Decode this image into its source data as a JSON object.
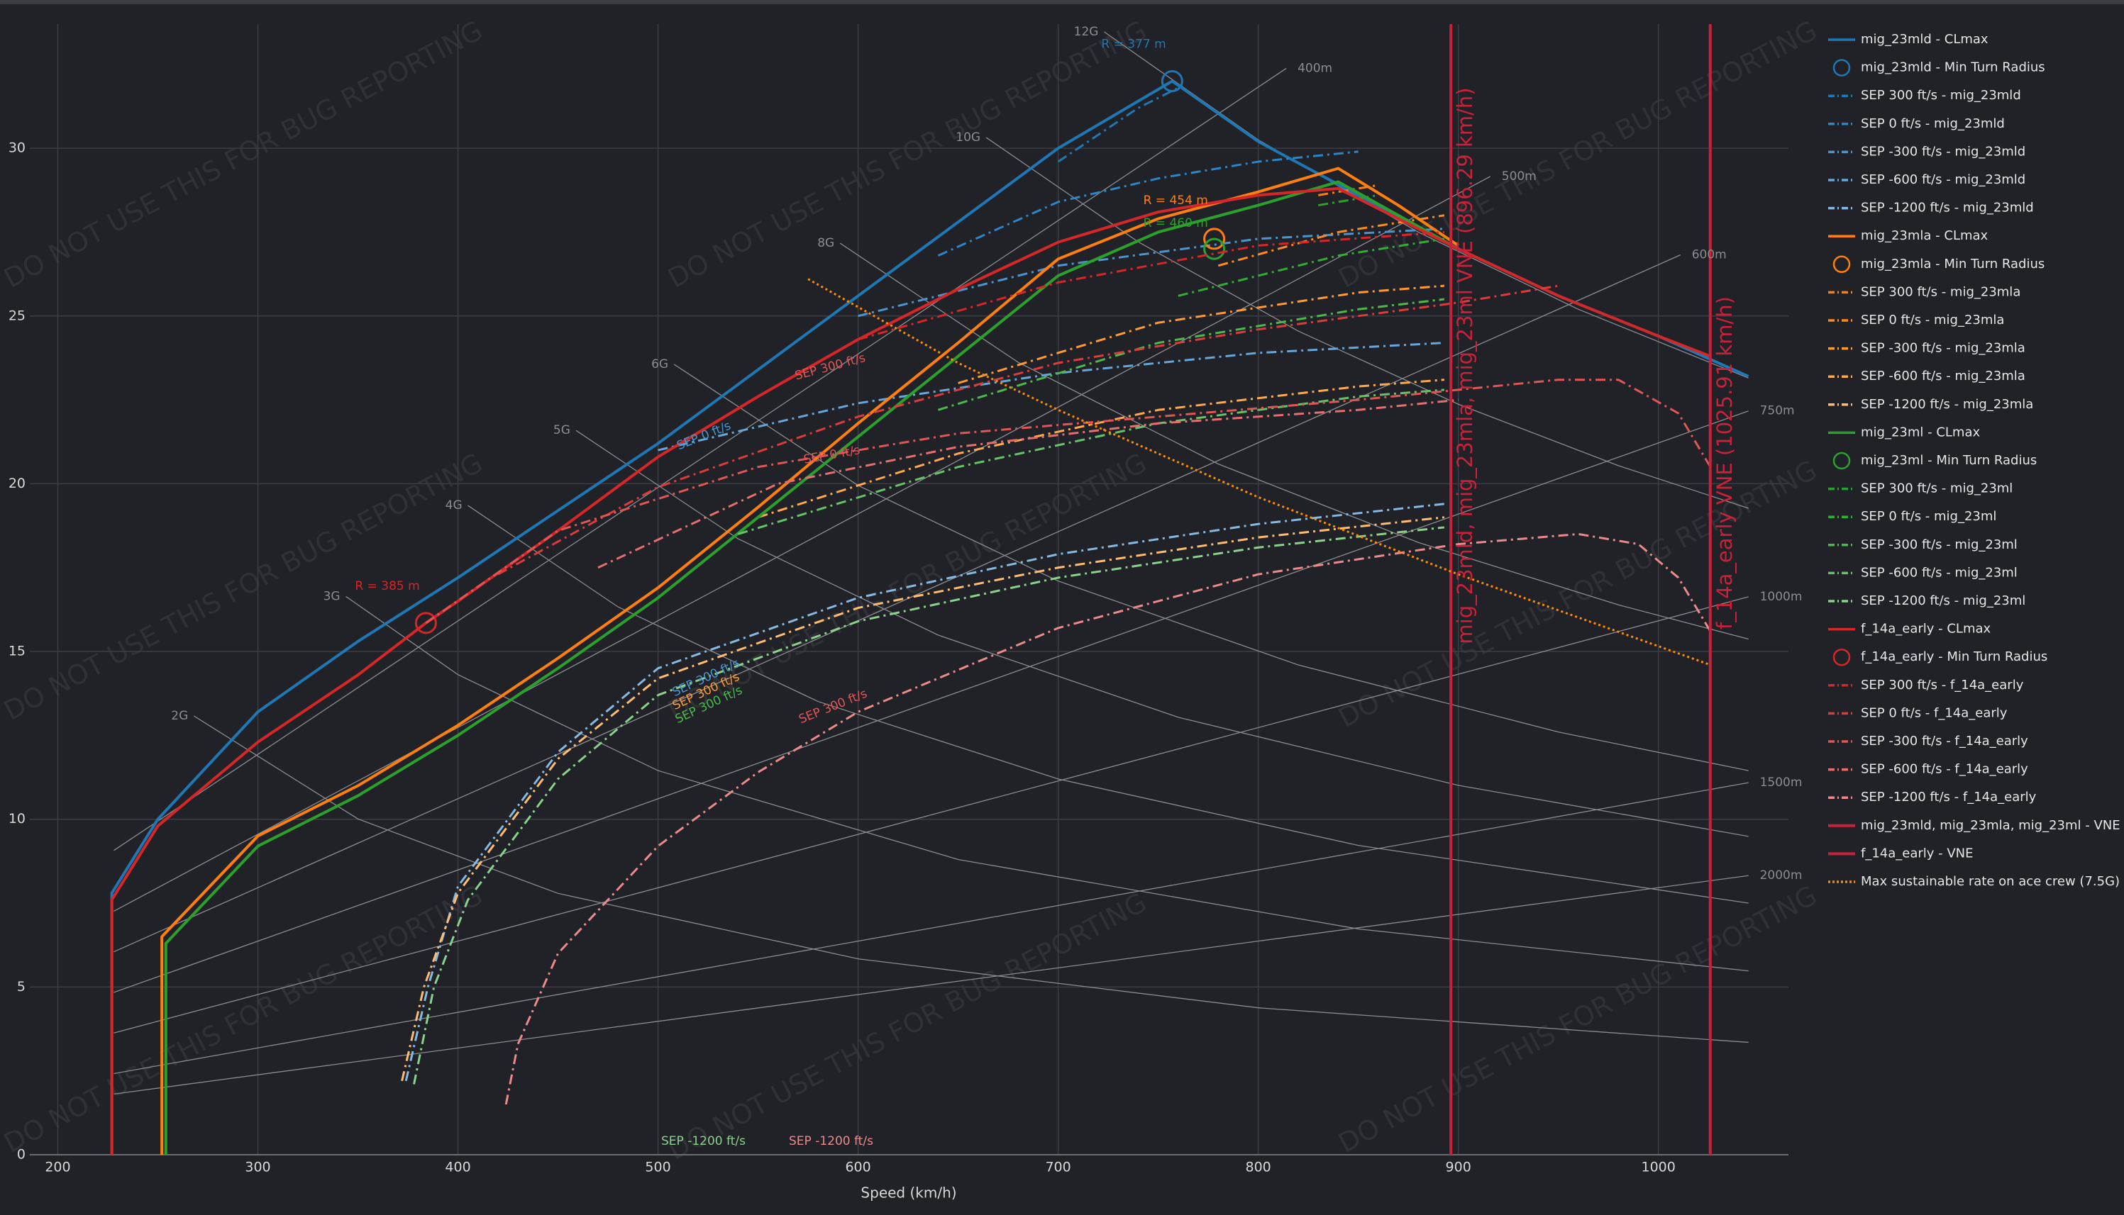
{
  "chart_data": {
    "type": "line",
    "xlabel": "Speed (km/h)",
    "watermark": "DO NOT USE THIS FOR BUG REPORTING",
    "xlim": [
      186,
      1065
    ],
    "ylim": [
      0,
      33.7
    ],
    "xticks": [
      200,
      300,
      400,
      500,
      600,
      700,
      800,
      900,
      1000
    ],
    "yticks": [
      0,
      5,
      10,
      15,
      20,
      25,
      30
    ],
    "grid": true,
    "series": [
      {
        "name": "mig_23mld - CLmax",
        "color": "#1f77b4",
        "style": "solid",
        "x": [
          227,
          227,
          250,
          300,
          350,
          400,
          450,
          500,
          550,
          600,
          650,
          700,
          757,
          800,
          850,
          900,
          950,
          1000,
          1045
        ],
        "values": [
          0,
          7.8,
          10,
          13.2,
          15.3,
          17.2,
          19.2,
          21.2,
          23.4,
          25.6,
          27.8,
          30,
          32,
          30.2,
          28.6,
          27,
          25.6,
          24.4,
          23.2
        ]
      },
      {
        "name": "mig_23mld - Min Turn Radius",
        "color": "#1f77b4",
        "style": "marker",
        "annotation": "R = 377 m",
        "x": [
          757
        ],
        "values": [
          32
        ]
      },
      {
        "name": "SEP 300 ft/s - mig_23mld",
        "color": "#1f77b4",
        "style": "dashdot",
        "x": [
          700,
          740,
          760
        ],
        "values": [
          29.6,
          31.2,
          31.8
        ]
      },
      {
        "name": "SEP 0 ft/s - mig_23mld",
        "color": "#2a86c8",
        "style": "dashdot",
        "x": [
          640,
          700,
          750,
          800,
          850
        ],
        "values": [
          26.8,
          28.4,
          29.1,
          29.6,
          29.9
        ]
      },
      {
        "name": "SEP -300 ft/s - mig_23mld",
        "color": "#4a94cf",
        "style": "dashdot",
        "x": [
          600,
          700,
          800,
          893
        ],
        "values": [
          25,
          26.5,
          27.3,
          27.6
        ]
      },
      {
        "name": "SEP -600 ft/s - mig_23mld",
        "color": "#66a6d8",
        "style": "dashdot",
        "x": [
          500,
          600,
          700,
          800,
          893
        ],
        "values": [
          21,
          22.4,
          23.3,
          23.9,
          24.2
        ]
      },
      {
        "name": "SEP -1200 ft/s - mig_23mld",
        "color": "#85b9e2",
        "style": "dashdot",
        "x": [
          374,
          385,
          400,
          450,
          500,
          600,
          700,
          800,
          893
        ],
        "values": [
          2.2,
          5,
          8,
          12,
          14.5,
          16.6,
          17.9,
          18.8,
          19.4
        ]
      },
      {
        "name": "mig_23mla - CLmax",
        "color": "#ff7f0e",
        "style": "solid",
        "x": [
          252,
          252,
          300,
          350,
          400,
          450,
          500,
          550,
          600,
          650,
          700,
          750,
          800,
          840,
          870,
          900
        ],
        "values": [
          0,
          6.5,
          9.5,
          11,
          12.8,
          14.8,
          16.9,
          19.3,
          21.8,
          24.2,
          26.7,
          27.9,
          28.7,
          29.4,
          28.3,
          27.1
        ]
      },
      {
        "name": "mig_23mla - Min Turn Radius",
        "color": "#ff7f0e",
        "style": "marker",
        "annotation": "R = 454 m",
        "x": [
          778
        ],
        "values": [
          27.3
        ]
      },
      {
        "name": "SEP 300 ft/s - mig_23mla",
        "color": "#ff7f0e",
        "style": "dashdot",
        "x": [
          830,
          860
        ],
        "values": [
          28.6,
          28.9
        ]
      },
      {
        "name": "SEP 0 ft/s - mig_23mla",
        "color": "#ff8c1a",
        "style": "dashdot",
        "x": [
          780,
          840,
          893
        ],
        "values": [
          26.5,
          27.5,
          28
        ]
      },
      {
        "name": "SEP -300 ft/s - mig_23mla",
        "color": "#ff9a33",
        "style": "dashdot",
        "x": [
          650,
          750,
          850,
          893
        ],
        "values": [
          23,
          24.8,
          25.7,
          25.9
        ]
      },
      {
        "name": "SEP -600 ft/s - mig_23mla",
        "color": "#ffa94d",
        "style": "dashdot",
        "x": [
          550,
          650,
          750,
          850,
          893
        ],
        "values": [
          19,
          20.9,
          22.2,
          22.9,
          23.1
        ]
      },
      {
        "name": "SEP -1200 ft/s - mig_23mla",
        "color": "#ffbb70",
        "style": "dashdot",
        "x": [
          372,
          383,
          400,
          450,
          500,
          600,
          700,
          800,
          893
        ],
        "values": [
          2.2,
          5,
          7.8,
          11.8,
          14.2,
          16.3,
          17.5,
          18.4,
          19
        ]
      },
      {
        "name": "mig_23ml - CLmax",
        "color": "#2ca02c",
        "style": "solid",
        "x": [
          254,
          254,
          300,
          350,
          400,
          450,
          500,
          550,
          600,
          650,
          700,
          750,
          800,
          840,
          870,
          900
        ],
        "values": [
          0,
          6.3,
          9.2,
          10.7,
          12.5,
          14.5,
          16.6,
          19,
          21.4,
          23.8,
          26.2,
          27.5,
          28.3,
          29,
          28,
          27
        ]
      },
      {
        "name": "mig_23ml - Min Turn Radius",
        "color": "#2ca02c",
        "style": "marker",
        "annotation": "R = 460 m",
        "x": [
          778
        ],
        "values": [
          27
        ]
      },
      {
        "name": "SEP 300 ft/s - mig_23ml",
        "color": "#2ca02c",
        "style": "dashdot",
        "x": [
          830,
          860
        ],
        "values": [
          28.3,
          28.6
        ]
      },
      {
        "name": "SEP 0 ft/s - mig_23ml",
        "color": "#33ac33",
        "style": "dashdot",
        "x": [
          760,
          840,
          893
        ],
        "values": [
          25.6,
          26.8,
          27.3
        ]
      },
      {
        "name": "SEP -300 ft/s - mig_23ml",
        "color": "#4cb84c",
        "style": "dashdot",
        "x": [
          640,
          750,
          850,
          893
        ],
        "values": [
          22.2,
          24.2,
          25.2,
          25.5
        ]
      },
      {
        "name": "SEP -600 ft/s - mig_23ml",
        "color": "#66c266",
        "style": "dashdot",
        "x": [
          540,
          650,
          750,
          850,
          893
        ],
        "values": [
          18.5,
          20.5,
          21.8,
          22.6,
          22.8
        ]
      },
      {
        "name": "SEP -1200 ft/s - mig_23ml",
        "color": "#8ad18a",
        "style": "dashdot",
        "x": [
          378,
          388,
          405,
          450,
          500,
          600,
          700,
          800,
          893
        ],
        "values": [
          2.1,
          5,
          7.6,
          11.2,
          13.7,
          15.9,
          17.2,
          18.1,
          18.7
        ]
      },
      {
        "name": "f_14a_early - CLmax",
        "color": "#d62728",
        "style": "solid",
        "x": [
          227,
          227,
          250,
          300,
          350,
          384,
          400,
          450,
          500,
          550,
          600,
          650,
          700,
          750,
          800,
          840,
          900,
          950,
          1000,
          1026
        ],
        "values": [
          0,
          7.6,
          9.8,
          12.3,
          14.3,
          15.85,
          16.5,
          18.6,
          20.8,
          22.6,
          24.3,
          25.8,
          27.2,
          28.1,
          28.6,
          28.8,
          27,
          25.6,
          24.4,
          23.8
        ]
      },
      {
        "name": "f_14a_early - Min Turn Radius",
        "color": "#d62728",
        "style": "marker",
        "annotation": "R = 385 m",
        "x": [
          384
        ],
        "values": [
          15.85
        ]
      },
      {
        "name": "SEP 300 ft/s - f_14a_early",
        "color": "#d62728",
        "style": "dashdot",
        "x": [
          600,
          700,
          800,
          893
        ],
        "values": [
          24.3,
          26,
          27.1,
          27.5
        ]
      },
      {
        "name": "SEP 0 ft/s - f_14a_early",
        "color": "#dc3b3c",
        "style": "dashdot",
        "x": [
          420,
          500,
          600,
          700,
          800,
          900,
          950
        ],
        "values": [
          17.3,
          19.9,
          22,
          23.6,
          24.6,
          25.4,
          25.9
        ]
      },
      {
        "name": "SEP -300 ft/s - f_14a_early",
        "color": "#e05556",
        "style": "dashdot",
        "x": [
          384,
          450,
          550,
          650,
          750,
          850,
          950,
          980,
          1010,
          1026
        ],
        "values": [
          15.85,
          18.6,
          20.5,
          21.5,
          22,
          22.5,
          23.1,
          23.1,
          22.1,
          20.5
        ]
      },
      {
        "name": "SEP -600 ft/s - f_14a_early",
        "color": "#e66e6f",
        "style": "dashdot",
        "x": [
          470,
          560,
          650,
          750,
          850,
          900
        ],
        "values": [
          17.5,
          20,
          21.1,
          21.8,
          22.2,
          22.5
        ]
      },
      {
        "name": "SEP -1200 ft/s - f_14a_early",
        "color": "#ec8a8a",
        "style": "dashdot",
        "x": [
          424,
          430,
          450,
          500,
          550,
          600,
          700,
          800,
          900,
          960,
          990,
          1010,
          1026
        ],
        "values": [
          1.5,
          3.3,
          6,
          9.2,
          11.4,
          13.2,
          15.7,
          17.3,
          18.2,
          18.5,
          18.2,
          17.2,
          15.6
        ]
      },
      {
        "name": "mig_23mld, mig_23mla, mig_23ml - VNE",
        "color": "#c8213a",
        "style": "vline",
        "label": "mig_23mld, mig_23mla, mig_23ml VNE (896.29 km/h)",
        "x": 896.29
      },
      {
        "name": "f_14a_early - VNE",
        "color": "#c8213a",
        "style": "vline",
        "label": "f_14a_early VNE (1025.91 km/h)",
        "x": 1025.91
      },
      {
        "name": "Max sustainable rate on ace crew (7.5G)",
        "color": "#ff8c00",
        "style": "dotted",
        "x": [
          575,
          650,
          700,
          800,
          900,
          1026
        ],
        "values": [
          26.1,
          23.6,
          22.2,
          19.6,
          17.3,
          14.6
        ]
      }
    ],
    "annotations": [
      {
        "text": "SEP 0 ft/s",
        "color": "#4a94cf"
      },
      {
        "text": "SEP 300 ft/s",
        "color": "#e05556"
      },
      {
        "text": "SEP 0 ft/s",
        "color": "#e05556"
      },
      {
        "text": "SEP 300 ft/s",
        "color": "#4a94cf"
      },
      {
        "text": "SEP 300 ft/s",
        "color": "#ff9a33"
      },
      {
        "text": "SEP 300 ft/s",
        "color": "#4cb84c"
      },
      {
        "text": "SEP 300 ft/s",
        "color": "#e05556"
      },
      {
        "text": "SEP -1200 ft/s",
        "color": "#8ad18a"
      },
      {
        "text": "SEP -1200 ft/s",
        "color": "#ec8a8a"
      }
    ],
    "reference_lines": [
      {
        "label": "2G",
        "kind": "g",
        "x": [
          268,
          350,
          450,
          600,
          800,
          1045
        ],
        "values": [
          13.08,
          10.01,
          7.79,
          5.84,
          4.38,
          3.35
        ]
      },
      {
        "label": "3G",
        "kind": "g",
        "x": [
          344,
          400,
          500,
          650,
          850,
          1045
        ],
        "values": [
          16.64,
          14.31,
          11.45,
          8.8,
          6.73,
          5.48
        ]
      },
      {
        "label": "4G",
        "kind": "g",
        "x": [
          405,
          480,
          580,
          700,
          850,
          1045
        ],
        "values": [
          19.35,
          16.33,
          13.51,
          11.2,
          9.22,
          7.5
        ]
      },
      {
        "label": "5G",
        "kind": "g",
        "x": [
          459,
          540,
          640,
          760,
          900,
          1045
        ],
        "values": [
          21.59,
          18.36,
          15.49,
          13.04,
          11.01,
          9.49
        ]
      },
      {
        "label": "6G",
        "kind": "g",
        "x": [
          508,
          600,
          700,
          820,
          950,
          1045
        ],
        "values": [
          23.56,
          19.95,
          17.1,
          14.6,
          12.6,
          11.45
        ]
      },
      {
        "label": "8G",
        "kind": "g",
        "x": [
          591,
          680,
          780,
          880,
          980,
          1045
        ],
        "values": [
          27.17,
          23.62,
          20.59,
          18.25,
          16.39,
          15.37
        ]
      },
      {
        "label": "10G",
        "kind": "g",
        "x": [
          664,
          740,
          820,
          900,
          980,
          1045
        ],
        "values": [
          30.32,
          27.21,
          24.55,
          22.37,
          20.54,
          19.27
        ]
      },
      {
        "label": "12G",
        "kind": "g",
        "x": [
          723,
          800,
          880,
          960,
          1045
        ],
        "values": [
          33.47,
          30.25,
          27.5,
          25.2,
          23.15
        ]
      },
      {
        "label": "400m",
        "kind": "r",
        "x": [
          228,
          814
        ],
        "values": [
          9.07,
          32.38
        ]
      },
      {
        "label": "500m",
        "kind": "r",
        "x": [
          228,
          916
        ],
        "values": [
          7.26,
          29.16
        ]
      },
      {
        "label": "600m",
        "kind": "r",
        "x": [
          228,
          1011
        ],
        "values": [
          6.05,
          26.82
        ]
      },
      {
        "label": "750m",
        "kind": "r",
        "x": [
          228,
          1045
        ],
        "values": [
          4.84,
          22.17
        ]
      },
      {
        "label": "1000m",
        "kind": "r",
        "x": [
          228,
          1045
        ],
        "values": [
          3.63,
          16.63
        ]
      },
      {
        "label": "1500m",
        "kind": "r",
        "x": [
          228,
          1045
        ],
        "values": [
          2.42,
          11.09
        ]
      },
      {
        "label": "2000m",
        "kind": "r",
        "x": [
          228,
          1045
        ],
        "values": [
          1.81,
          8.32
        ]
      }
    ]
  }
}
